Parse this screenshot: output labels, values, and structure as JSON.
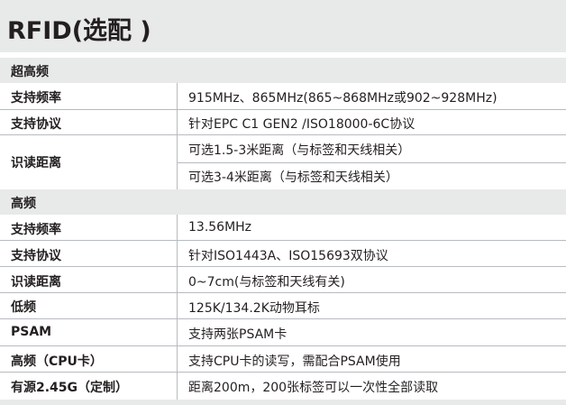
{
  "title": "RFID(选配 )",
  "sections": [
    {
      "label": "超高频",
      "rows": [
        {
          "key": "支持频率",
          "values": [
            "915MHz、865MHz(865~868MHz或902~928MHz)"
          ]
        },
        {
          "key": "支持协议",
          "values": [
            "针对EPC C1 GEN2 /ISO18000-6C协议"
          ]
        },
        {
          "key": "识读距离",
          "values": [
            "可选1.5-3米距离（与标签和天线相关）",
            "可选3-4米距离（与标签和天线相关）"
          ]
        }
      ]
    },
    {
      "label": "高频",
      "rows": [
        {
          "key": "支持频率",
          "values": [
            "13.56MHz"
          ]
        },
        {
          "key": "支持协议",
          "values": [
            "针对ISO1443A、ISO15693双协议"
          ]
        },
        {
          "key": "识读距离",
          "values": [
            "0~7cm(与标签和天线有关)"
          ]
        },
        {
          "key": "低频",
          "values": [
            "125K/134.2K动物耳标"
          ]
        },
        {
          "key": "PSAM",
          "values": [
            "支持两张PSAM卡"
          ]
        },
        {
          "key": "高频（CPU卡）",
          "values": [
            "支持CPU卡的读写，需配合PSAM使用"
          ]
        },
        {
          "key": "有源2.45G（定制）",
          "values": [
            "距离200m，200张标签可以一次性全部读取"
          ]
        }
      ]
    }
  ]
}
